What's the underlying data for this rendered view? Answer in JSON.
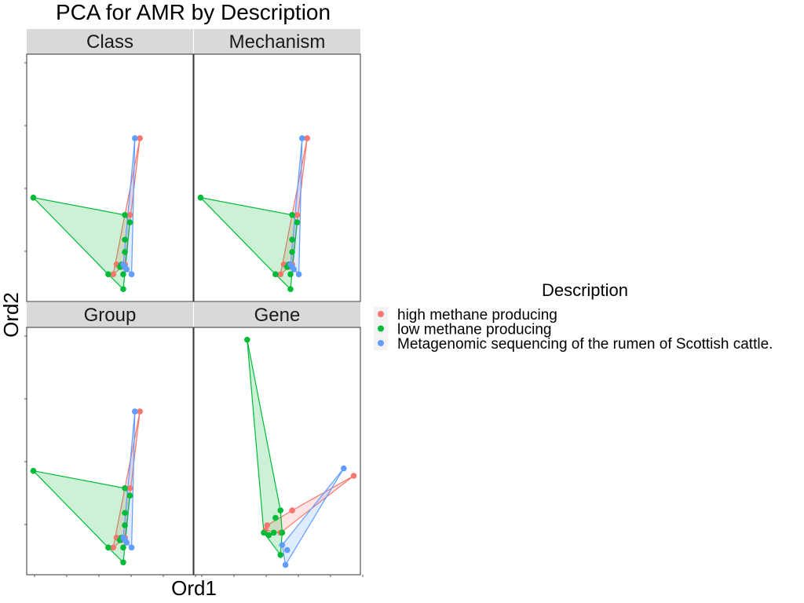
{
  "chart_data": {
    "type": "scatter",
    "title": "PCA for AMR by Description",
    "xlabel": "Ord1",
    "ylabel": "Ord2",
    "xlim": [
      0,
      100
    ],
    "ylim": [
      0,
      100
    ],
    "legend": {
      "title": "Description",
      "placement": "right",
      "entries": [
        {
          "label": "high methane producing",
          "color": "#F8766D"
        },
        {
          "label": "low methane producing",
          "color": "#00BA38"
        },
        {
          "label": "Metagenomic sequencing of the rumen of Scottish cattle.",
          "color": "#619CFF"
        }
      ]
    },
    "panels": [
      {
        "name": "Class",
        "series": [
          {
            "group": "high methane producing",
            "points": [
              [
                68,
                66
              ],
              [
                59,
                15
              ],
              [
                52,
                11
              ],
              [
                54,
                15
              ],
              [
                57,
                14
              ],
              [
                62,
                35
              ]
            ]
          },
          {
            "group": "low methane producing",
            "points": [
              [
                4,
                42
              ],
              [
                59,
                35
              ],
              [
                62,
                32
              ],
              [
                59,
                25
              ],
              [
                59,
                20
              ],
              [
                57,
                15
              ],
              [
                49,
                11
              ],
              [
                58,
                5
              ],
              [
                58,
                11
              ],
              [
                56,
                14
              ]
            ]
          },
          {
            "group": "Metagenomic sequencing of the rumen of Scottish cattle.",
            "points": [
              [
                65,
                66
              ],
              [
                63,
                11
              ],
              [
                60,
                13
              ],
              [
                59,
                14
              ],
              [
                58,
                15
              ]
            ]
          }
        ]
      },
      {
        "name": "Mechanism",
        "series": [
          {
            "group": "high methane producing",
            "points": [
              [
                68,
                66
              ],
              [
                59,
                15
              ],
              [
                52,
                11
              ],
              [
                54,
                15
              ],
              [
                57,
                14
              ],
              [
                62,
                35
              ]
            ]
          },
          {
            "group": "low methane producing",
            "points": [
              [
                4,
                42
              ],
              [
                59,
                35
              ],
              [
                62,
                32
              ],
              [
                59,
                25
              ],
              [
                59,
                20
              ],
              [
                57,
                15
              ],
              [
                49,
                11
              ],
              [
                58,
                5
              ],
              [
                58,
                11
              ],
              [
                56,
                14
              ]
            ]
          },
          {
            "group": "Metagenomic sequencing of the rumen of Scottish cattle.",
            "points": [
              [
                65,
                66
              ],
              [
                63,
                11
              ],
              [
                60,
                13
              ],
              [
                59,
                14
              ],
              [
                58,
                15
              ]
            ]
          }
        ]
      },
      {
        "name": "Group",
        "series": [
          {
            "group": "high methane producing",
            "points": [
              [
                68,
                66
              ],
              [
                59,
                15
              ],
              [
                52,
                11
              ],
              [
                54,
                15
              ],
              [
                57,
                14
              ],
              [
                62,
                35
              ]
            ]
          },
          {
            "group": "low methane producing",
            "points": [
              [
                4,
                42
              ],
              [
                59,
                35
              ],
              [
                62,
                32
              ],
              [
                59,
                25
              ],
              [
                59,
                20
              ],
              [
                57,
                15
              ],
              [
                49,
                11
              ],
              [
                58,
                5
              ],
              [
                58,
                11
              ],
              [
                56,
                14
              ]
            ]
          },
          {
            "group": "Metagenomic sequencing of the rumen of Scottish cattle.",
            "points": [
              [
                65,
                66
              ],
              [
                63,
                11
              ],
              [
                60,
                13
              ],
              [
                59,
                14
              ],
              [
                58,
                15
              ]
            ]
          }
        ]
      },
      {
        "name": "Gene",
        "series": [
          {
            "group": "high methane producing",
            "points": [
              [
                96,
                40
              ],
              [
                44,
                20
              ],
              [
                43,
                18
              ],
              [
                52,
                17
              ],
              [
                59,
                26
              ]
            ]
          },
          {
            "group": "low methane producing",
            "points": [
              [
                32,
                95
              ],
              [
                52,
                26
              ],
              [
                49,
                23
              ],
              [
                42,
                17
              ],
              [
                48,
                17
              ],
              [
                45,
                16
              ],
              [
                53,
                17
              ],
              [
                52,
                8
              ]
            ]
          },
          {
            "group": "Metagenomic sequencing of the rumen of Scottish cattle.",
            "points": [
              [
                90,
                43
              ],
              [
                55,
                4
              ],
              [
                53,
                12
              ],
              [
                56,
                10
              ]
            ]
          }
        ]
      }
    ]
  }
}
